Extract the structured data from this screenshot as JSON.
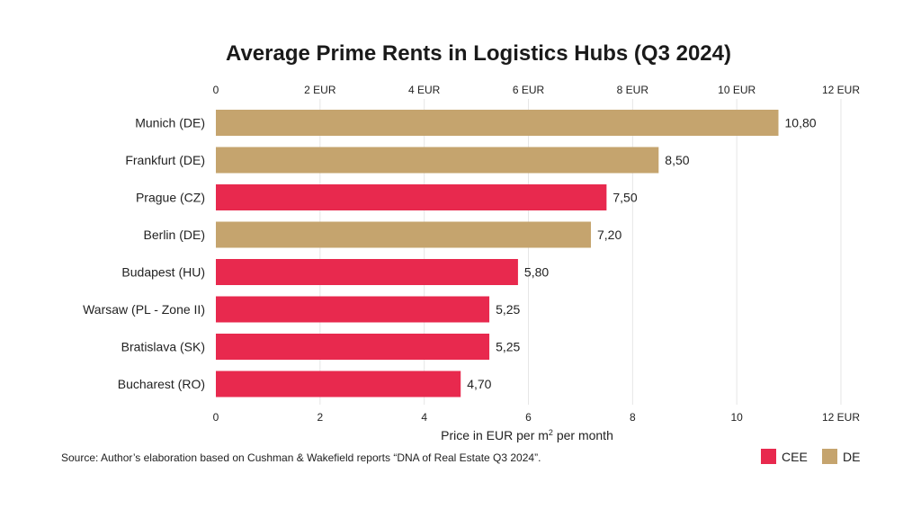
{
  "chart_data": {
    "type": "bar",
    "orientation": "horizontal",
    "title": "Average Prime Rents in Logistics Hubs (Q3 2024)",
    "xlabel_prefix": "Price in EUR per m",
    "xlabel_sup": "2",
    "xlabel_suffix": " per month",
    "xlim": [
      0,
      12
    ],
    "grid": true,
    "categories": [
      "Munich (DE)",
      "Frankfurt (DE)",
      "Prague (CZ)",
      "Berlin (DE)",
      "Budapest (HU)",
      "Warsaw (PL - Zone II)",
      "Bratislava (SK)",
      "Bucharest (RO)"
    ],
    "values": [
      10.8,
      8.5,
      7.5,
      7.2,
      5.8,
      5.25,
      5.25,
      4.7
    ],
    "value_labels": [
      "10,80",
      "8,50",
      "7,50",
      "7,20",
      "5,80",
      "5,25",
      "5,25",
      "4,70"
    ],
    "groups": [
      "DE",
      "DE",
      "CEE",
      "DE",
      "CEE",
      "CEE",
      "CEE",
      "CEE"
    ],
    "top_ticks": [
      "0",
      "2 EUR",
      "4 EUR",
      "6 EUR",
      "8 EUR",
      "10 EUR",
      "12 EUR"
    ],
    "bottom_ticks": [
      "0",
      "2",
      "4",
      "6",
      "8",
      "10",
      "12 EUR"
    ],
    "tick_values": [
      0,
      2,
      4,
      6,
      8,
      10,
      12
    ],
    "legend": [
      {
        "name": "CEE",
        "color": "#e8294e"
      },
      {
        "name": "DE",
        "color": "#c5a46e"
      }
    ],
    "legend_position": "bottom-right",
    "source": "Source: Author’s elaboration based on Cushman & Wakefield reports “DNA of Real Estate Q3 2024”."
  }
}
